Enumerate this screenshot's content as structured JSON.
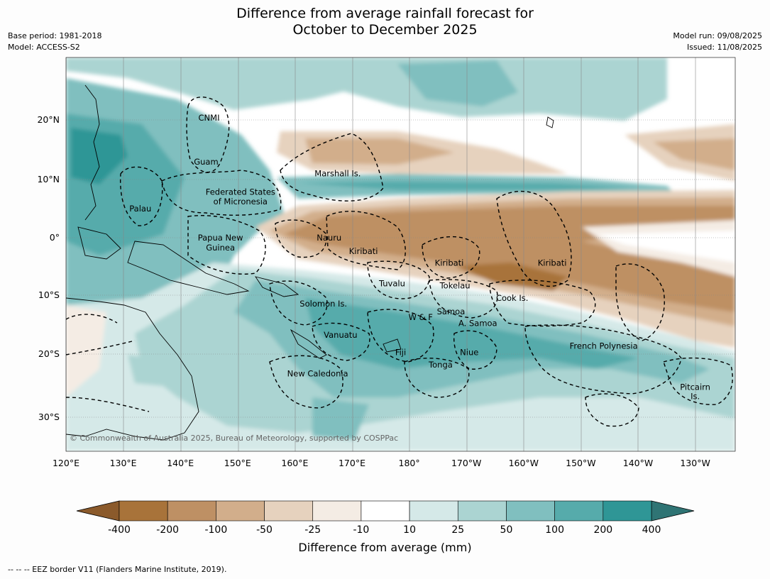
{
  "header": {
    "title_line1": "Difference from average rainfall forecast for",
    "title_line2": "October to December 2025",
    "base_period": "Base period: 1981-2018",
    "model": "Model: ACCESS-S2",
    "model_run": "Model run: 09/08/2025",
    "issued": "Issued: 11/08/2025"
  },
  "map": {
    "lon_ticks": [
      "120°E",
      "130°E",
      "140°E",
      "150°E",
      "160°E",
      "170°E",
      "180°",
      "170°W",
      "160°W",
      "150°W",
      "140°W",
      "130°W"
    ],
    "lat_ticks": [
      "20°N",
      "10°N",
      "0°",
      "10°S",
      "20°S",
      "30°S"
    ],
    "copyright": "© Commonwealth of Australia 2025, Bureau of Meteorology, supported by COSPPac",
    "region_labels": [
      {
        "name": "CNMI",
        "lon": 145,
        "lat": 20.5
      },
      {
        "name": "Guam",
        "lon": 144.5,
        "lat": 13
      },
      {
        "name": "Marshall Is.",
        "lon": 167.5,
        "lat": 11
      },
      {
        "name": "Federated States",
        "lon": 150.5,
        "lat": 7.8
      },
      {
        "name": "of Micronesia",
        "lon": 150.5,
        "lat": 6.2
      },
      {
        "name": "Palau",
        "lon": 133,
        "lat": 5
      },
      {
        "name": "Papua New",
        "lon": 147,
        "lat": 0
      },
      {
        "name": "Guinea",
        "lon": 147,
        "lat": -1.7
      },
      {
        "name": "Nauru",
        "lon": 166,
        "lat": 0
      },
      {
        "name": "Kiribati",
        "lon": 172,
        "lat": -2.3
      },
      {
        "name": "Kiribati",
        "lon": 187,
        "lat": -4.3
      },
      {
        "name": "Kiribati",
        "lon": 205,
        "lat": -4.3
      },
      {
        "name": "Tuvalu",
        "lon": 177,
        "lat": -7.8
      },
      {
        "name": "Tokelau",
        "lon": 188,
        "lat": -8.2
      },
      {
        "name": "Cook Is.",
        "lon": 198,
        "lat": -10.3
      },
      {
        "name": "Solomon Is.",
        "lon": 165,
        "lat": -11.3
      },
      {
        "name": "Samoa",
        "lon": 187.3,
        "lat": -12.6
      },
      {
        "name": "W & F",
        "lon": 182,
        "lat": -13.6
      },
      {
        "name": "A. Samoa",
        "lon": 192,
        "lat": -14.6
      },
      {
        "name": "Vanuatu",
        "lon": 168,
        "lat": -16.6
      },
      {
        "name": "Fiji",
        "lon": 178.5,
        "lat": -19.6
      },
      {
        "name": "Niue",
        "lon": 190.5,
        "lat": -19.6
      },
      {
        "name": "French Polynesia",
        "lon": 214,
        "lat": -18.5
      },
      {
        "name": "Tonga",
        "lon": 185.5,
        "lat": -21.7
      },
      {
        "name": "New Caledonia",
        "lon": 164,
        "lat": -23.2
      },
      {
        "name": "Pitcairn",
        "lon": 230,
        "lat": -25.5
      },
      {
        "name": "Is.",
        "lon": 230,
        "lat": -27.1
      }
    ]
  },
  "colorbar": {
    "ticks": [
      "-400",
      "-200",
      "-100",
      "-50",
      "-25",
      "-10",
      "10",
      "25",
      "50",
      "100",
      "200",
      "400"
    ],
    "colors": [
      "#a8733a",
      "#be9064",
      "#d2ae8b",
      "#e6d2be",
      "#f4ece4",
      "#ffffff",
      "#d5e9e8",
      "#abd4d2",
      "#80bfbf",
      "#56abab",
      "#2f9696"
    ],
    "extend_low_color": "#8b5a2b",
    "extend_high_color": "#2f7474",
    "label": "Difference from average (mm)"
  },
  "footer": {
    "legend_line": "--  --  -- EEZ border V11 (Flanders Marine Institute, 2019)."
  }
}
